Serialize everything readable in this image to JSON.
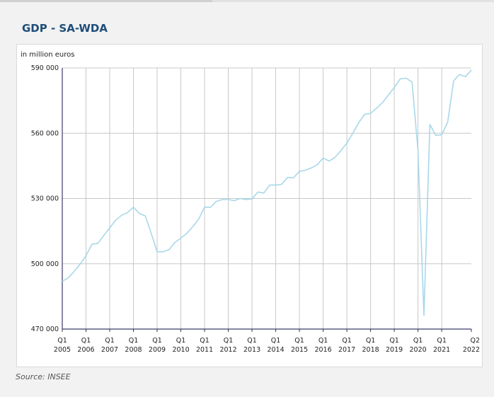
{
  "page": {
    "title": "GDP - SA-WDA",
    "source": "Source: INSEE"
  },
  "chart_data": {
    "type": "line",
    "title": "GDP - SA-WDA",
    "ylabel": "in million euros",
    "xlabel": "",
    "ylim": [
      470000,
      590000
    ],
    "yticks": [
      470000,
      500000,
      530000,
      560000,
      590000
    ],
    "ytick_labels": [
      "470 000",
      "500 000",
      "530 000",
      "560 000",
      "590 000"
    ],
    "xticks": [
      {
        "quarter": "Q1",
        "year": "2005"
      },
      {
        "quarter": "Q1",
        "year": "2006"
      },
      {
        "quarter": "Q1",
        "year": "2007"
      },
      {
        "quarter": "Q1",
        "year": "2008"
      },
      {
        "quarter": "Q1",
        "year": "2009"
      },
      {
        "quarter": "Q1",
        "year": "2010"
      },
      {
        "quarter": "Q1",
        "year": "2011"
      },
      {
        "quarter": "Q1",
        "year": "2012"
      },
      {
        "quarter": "Q1",
        "year": "2013"
      },
      {
        "quarter": "Q1",
        "year": "2014"
      },
      {
        "quarter": "Q1",
        "year": "2015"
      },
      {
        "quarter": "Q1",
        "year": "2016"
      },
      {
        "quarter": "Q1",
        "year": "2017"
      },
      {
        "quarter": "Q1",
        "year": "2018"
      },
      {
        "quarter": "Q1",
        "year": "2019"
      },
      {
        "quarter": "Q1",
        "year": "2020"
      },
      {
        "quarter": "Q1",
        "year": "2021"
      },
      {
        "quarter": "Q2",
        "year": "2022"
      }
    ],
    "grid": true,
    "legend": "none",
    "line_color": "#a8d8ea",
    "series": [
      {
        "x": [
          "2005Q1",
          "2005Q2",
          "2005Q3",
          "2005Q4",
          "2006Q1",
          "2006Q2",
          "2006Q3",
          "2006Q4",
          "2007Q1",
          "2007Q2",
          "2007Q3",
          "2007Q4",
          "2008Q1",
          "2008Q2",
          "2008Q3",
          "2008Q4",
          "2009Q1",
          "2009Q2",
          "2009Q3",
          "2009Q4",
          "2010Q1",
          "2010Q2",
          "2010Q3",
          "2010Q4",
          "2011Q1",
          "2011Q2",
          "2011Q3",
          "2011Q4",
          "2012Q1",
          "2012Q2",
          "2012Q3",
          "2012Q4",
          "2013Q1",
          "2013Q2",
          "2013Q3",
          "2013Q4",
          "2014Q1",
          "2014Q2",
          "2014Q3",
          "2014Q4",
          "2015Q1",
          "2015Q2",
          "2015Q3",
          "2015Q4",
          "2016Q1",
          "2016Q2",
          "2016Q3",
          "2016Q4",
          "2017Q1",
          "2017Q2",
          "2017Q3",
          "2017Q4",
          "2018Q1",
          "2018Q2",
          "2018Q3",
          "2018Q4",
          "2019Q1",
          "2019Q2",
          "2019Q3",
          "2019Q4",
          "2020Q1",
          "2020Q2",
          "2020Q3",
          "2020Q4",
          "2021Q1",
          "2021Q2",
          "2021Q3",
          "2021Q4",
          "2022Q1",
          "2022Q2"
        ],
        "values": [
          492000,
          493500,
          496500,
          499800,
          503700,
          509000,
          509400,
          513000,
          516500,
          520000,
          522300,
          523500,
          526000,
          523200,
          522000,
          514000,
          505500,
          505500,
          506500,
          509800,
          511800,
          514000,
          517000,
          520500,
          526000,
          526000,
          528700,
          529500,
          529500,
          529000,
          530000,
          529500,
          529800,
          533000,
          532500,
          536200,
          536200,
          536500,
          539700,
          539500,
          542500,
          543000,
          544000,
          545500,
          548600,
          547200,
          548900,
          552000,
          555500,
          560000,
          564800,
          568700,
          569100,
          571500,
          574000,
          577500,
          581000,
          585000,
          585300,
          583500,
          552000,
          476300,
          564000,
          559000,
          559300,
          565000,
          584000,
          587000,
          586000,
          589000
        ]
      }
    ]
  }
}
